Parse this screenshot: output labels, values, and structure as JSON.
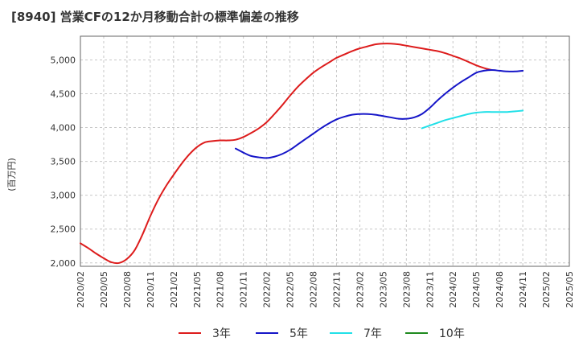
{
  "chart_data": {
    "type": "line",
    "title": "[8940]  営業CFの12か月移動合計の標準偏差の推移",
    "ylabel": "(百万円)",
    "xlabel": "",
    "ylim": [
      1950,
      5350
    ],
    "yticks": [
      2000,
      2500,
      3000,
      3500,
      4000,
      4500,
      5000
    ],
    "ytick_labels": [
      "2,000",
      "2,500",
      "3,000",
      "3,500",
      "4,000",
      "4,500",
      "5,000"
    ],
    "x_ticks": [
      "2020/02",
      "2020/05",
      "2020/08",
      "2020/11",
      "2021/02",
      "2021/05",
      "2021/08",
      "2021/11",
      "2022/02",
      "2022/05",
      "2022/08",
      "2022/11",
      "2023/02",
      "2023/05",
      "2023/08",
      "2023/11",
      "2024/02",
      "2024/05",
      "2024/08",
      "2024/11",
      "2025/02",
      "2025/05"
    ],
    "grid": true,
    "legend_position": "bottom",
    "series": [
      {
        "name": "3年",
        "color": "#dd1c1c",
        "points": [
          [
            "2020/02",
            2290
          ],
          [
            "2020/03",
            2220
          ],
          [
            "2020/04",
            2140
          ],
          [
            "2020/05",
            2070
          ],
          [
            "2020/06",
            2010
          ],
          [
            "2020/07",
            2000
          ],
          [
            "2020/08",
            2060
          ],
          [
            "2020/09",
            2190
          ],
          [
            "2020/10",
            2420
          ],
          [
            "2020/11",
            2690
          ],
          [
            "2020/12",
            2930
          ],
          [
            "2021/01",
            3130
          ],
          [
            "2021/02",
            3300
          ],
          [
            "2021/03",
            3460
          ],
          [
            "2021/04",
            3600
          ],
          [
            "2021/05",
            3710
          ],
          [
            "2021/06",
            3780
          ],
          [
            "2021/07",
            3800
          ],
          [
            "2021/08",
            3810
          ],
          [
            "2021/09",
            3810
          ],
          [
            "2021/10",
            3820
          ],
          [
            "2021/11",
            3860
          ],
          [
            "2021/12",
            3920
          ],
          [
            "2022/01",
            3990
          ],
          [
            "2022/02",
            4080
          ],
          [
            "2022/03",
            4200
          ],
          [
            "2022/04",
            4330
          ],
          [
            "2022/05",
            4470
          ],
          [
            "2022/06",
            4600
          ],
          [
            "2022/07",
            4710
          ],
          [
            "2022/08",
            4810
          ],
          [
            "2022/09",
            4890
          ],
          [
            "2022/10",
            4960
          ],
          [
            "2022/11",
            5030
          ],
          [
            "2022/12",
            5080
          ],
          [
            "2023/01",
            5130
          ],
          [
            "2023/02",
            5170
          ],
          [
            "2023/03",
            5200
          ],
          [
            "2023/04",
            5230
          ],
          [
            "2023/05",
            5240
          ],
          [
            "2023/06",
            5240
          ],
          [
            "2023/07",
            5230
          ],
          [
            "2023/08",
            5210
          ],
          [
            "2023/09",
            5190
          ],
          [
            "2023/10",
            5170
          ],
          [
            "2023/11",
            5150
          ],
          [
            "2023/12",
            5130
          ],
          [
            "2024/01",
            5100
          ],
          [
            "2024/02",
            5060
          ],
          [
            "2024/03",
            5020
          ],
          [
            "2024/04",
            4970
          ],
          [
            "2024/05",
            4920
          ],
          [
            "2024/06",
            4880
          ],
          [
            "2024/07",
            4850
          ]
        ]
      },
      {
        "name": "5年",
        "color": "#1515c8",
        "points": [
          [
            "2021/10",
            3690
          ],
          [
            "2021/11",
            3630
          ],
          [
            "2021/12",
            3580
          ],
          [
            "2022/01",
            3560
          ],
          [
            "2022/02",
            3550
          ],
          [
            "2022/03",
            3570
          ],
          [
            "2022/04",
            3610
          ],
          [
            "2022/05",
            3670
          ],
          [
            "2022/06",
            3750
          ],
          [
            "2022/07",
            3830
          ],
          [
            "2022/08",
            3910
          ],
          [
            "2022/09",
            3990
          ],
          [
            "2022/10",
            4060
          ],
          [
            "2022/11",
            4120
          ],
          [
            "2022/12",
            4160
          ],
          [
            "2023/01",
            4190
          ],
          [
            "2023/02",
            4200
          ],
          [
            "2023/03",
            4200
          ],
          [
            "2023/04",
            4190
          ],
          [
            "2023/05",
            4170
          ],
          [
            "2023/06",
            4150
          ],
          [
            "2023/07",
            4130
          ],
          [
            "2023/08",
            4130
          ],
          [
            "2023/09",
            4150
          ],
          [
            "2023/10",
            4200
          ],
          [
            "2023/11",
            4290
          ],
          [
            "2023/12",
            4400
          ],
          [
            "2024/01",
            4500
          ],
          [
            "2024/02",
            4590
          ],
          [
            "2024/03",
            4670
          ],
          [
            "2024/04",
            4740
          ],
          [
            "2024/05",
            4810
          ],
          [
            "2024/06",
            4840
          ],
          [
            "2024/07",
            4850
          ],
          [
            "2024/08",
            4840
          ],
          [
            "2024/09",
            4830
          ],
          [
            "2024/10",
            4830
          ],
          [
            "2024/11",
            4840
          ]
        ]
      },
      {
        "name": "7年",
        "color": "#22e0e8",
        "points": [
          [
            "2023/10",
            3990
          ],
          [
            "2023/11",
            4030
          ],
          [
            "2023/12",
            4070
          ],
          [
            "2024/01",
            4110
          ],
          [
            "2024/02",
            4140
          ],
          [
            "2024/03",
            4170
          ],
          [
            "2024/04",
            4200
          ],
          [
            "2024/05",
            4220
          ],
          [
            "2024/06",
            4230
          ],
          [
            "2024/07",
            4230
          ],
          [
            "2024/08",
            4230
          ],
          [
            "2024/09",
            4230
          ],
          [
            "2024/10",
            4240
          ],
          [
            "2024/11",
            4250
          ]
        ]
      },
      {
        "name": "10年",
        "color": "#1f8a1f",
        "points": []
      }
    ]
  }
}
